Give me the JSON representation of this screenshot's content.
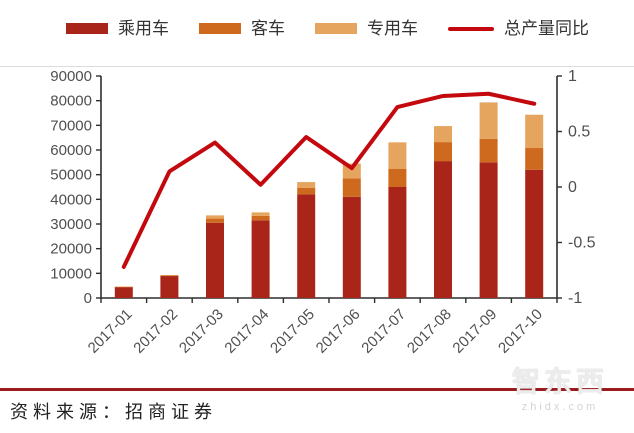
{
  "chart_data": {
    "type": "bar",
    "subtype": "stacked-bar-with-line",
    "title": "",
    "categories": [
      "2017-01",
      "2017-02",
      "2017-03",
      "2017-04",
      "2017-05",
      "2017-06",
      "2017-07",
      "2017-08",
      "2017-09",
      "2017-10"
    ],
    "series": [
      {
        "name": "乘用车",
        "type": "bar",
        "axis": "left",
        "color": "#a92419",
        "values": [
          4400,
          8900,
          30500,
          31500,
          42000,
          41000,
          45000,
          55500,
          55000,
          52000
        ]
      },
      {
        "name": "客车",
        "type": "bar",
        "axis": "left",
        "color": "#ce6a1d",
        "values": [
          150,
          250,
          1700,
          1800,
          2700,
          7500,
          7300,
          7700,
          9500,
          8800
        ]
      },
      {
        "name": "专用车",
        "type": "bar",
        "axis": "left",
        "color": "#e6a55e",
        "values": [
          100,
          150,
          1300,
          1400,
          2300,
          6000,
          10800,
          6500,
          14800,
          13500
        ]
      },
      {
        "name": "总产量同比",
        "type": "line",
        "axis": "right",
        "color": "#c4090e",
        "values": [
          -0.72,
          0.14,
          0.4,
          0.02,
          0.45,
          0.17,
          0.72,
          0.82,
          0.84,
          0.75
        ]
      }
    ],
    "left_axis": {
      "min": 0,
      "max": 90000,
      "step": 10000,
      "tick_labels": [
        "0",
        "10000",
        "20000",
        "30000",
        "40000",
        "50000",
        "60000",
        "70000",
        "80000",
        "90000"
      ]
    },
    "right_axis": {
      "min": -1,
      "max": 1,
      "step": 0.5,
      "tick_labels": [
        "-1",
        "-0.5",
        "0",
        "0.5",
        "1"
      ]
    },
    "stacked": true,
    "grid": false,
    "legend_position": "top",
    "xlabel": "",
    "ylabel": ""
  },
  "footer": {
    "source_text": "资料来源：招商证券"
  },
  "watermark": {
    "title": "智东西",
    "url": "zhidx.com"
  }
}
